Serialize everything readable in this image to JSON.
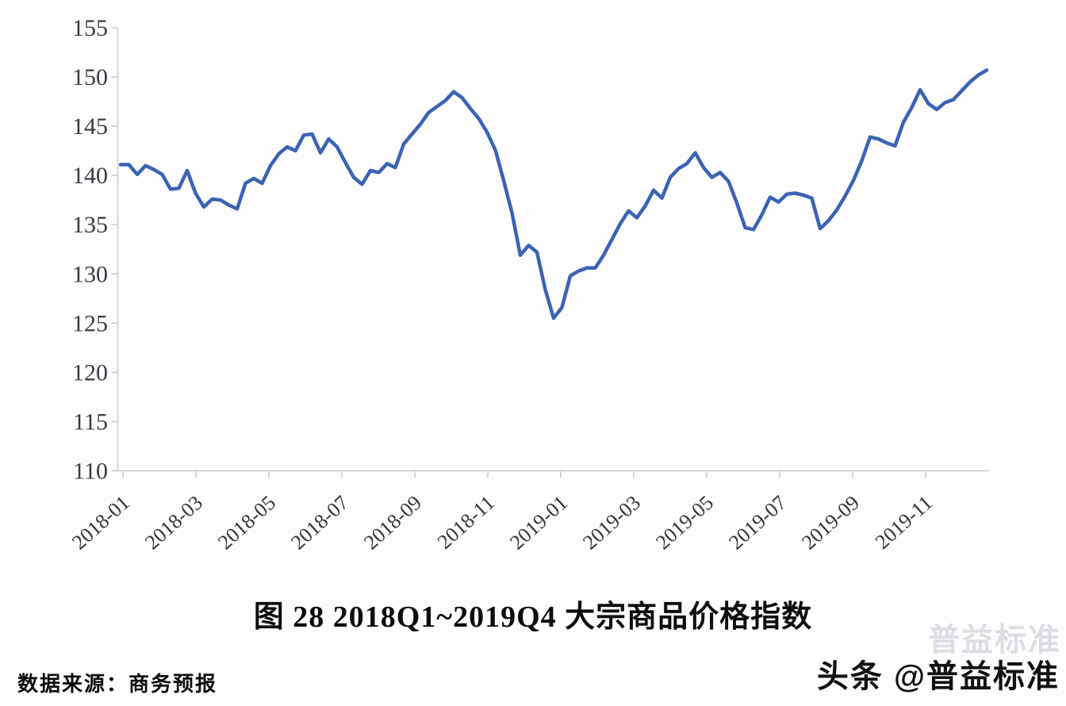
{
  "figure": {
    "title": "图 28  2018Q1~2019Q4 大宗商品价格指数",
    "source_note": "数据来源：商务预报",
    "watermark": "头条 @普益标准",
    "watermark_ghost": "普益标准"
  },
  "chart_data": {
    "type": "line",
    "title": "图 28  2018Q1~2019Q4 大宗商品价格指数",
    "grid": false,
    "legend": null,
    "x_axis": {
      "start": "2018-01",
      "end": "2019-12",
      "frequency": "weekly",
      "tick_labels": [
        "2018-01",
        "2018-03",
        "2018-05",
        "2018-07",
        "2018-09",
        "2018-11",
        "2019-01",
        "2019-03",
        "2019-05",
        "2019-07",
        "2019-09",
        "2019-11"
      ]
    },
    "y_axis": {
      "ticks": [
        110,
        115,
        120,
        125,
        130,
        135,
        140,
        145,
        150,
        155
      ],
      "range": [
        110,
        155
      ]
    },
    "series": [
      {
        "name": "大宗商品价格指数",
        "color": "#3b63b4",
        "values": [
          141.1,
          141.1,
          140.1,
          141.0,
          140.6,
          140.1,
          138.6,
          138.7,
          140.5,
          138.2,
          136.8,
          137.6,
          137.5,
          137.0,
          136.6,
          139.2,
          139.7,
          139.2,
          141.0,
          142.2,
          142.9,
          142.5,
          144.1,
          144.2,
          142.3,
          143.7,
          142.9,
          141.3,
          139.8,
          139.1,
          140.5,
          140.3,
          141.2,
          140.8,
          143.2,
          144.2,
          145.2,
          146.4,
          147.0,
          147.6,
          148.5,
          147.9,
          146.8,
          145.8,
          144.4,
          142.6,
          139.5,
          136.2,
          131.9,
          132.9,
          132.2,
          128.4,
          125.5,
          126.6,
          129.8,
          130.3,
          130.6,
          130.6,
          131.9,
          133.5,
          135.1,
          136.4,
          135.7,
          136.9,
          138.5,
          137.7,
          139.8,
          140.7,
          141.2,
          142.3,
          140.8,
          139.8,
          140.3,
          139.4,
          137.2,
          134.7,
          134.5,
          136.0,
          137.8,
          137.3,
          138.1,
          138.2,
          138.0,
          137.7,
          134.6,
          135.4,
          136.5,
          137.9,
          139.5,
          141.5,
          143.9,
          143.7,
          143.3,
          143.0,
          145.4,
          146.9,
          148.7,
          147.3,
          146.7,
          147.4,
          147.7,
          148.6,
          149.5,
          150.2,
          150.7
        ]
      }
    ]
  },
  "colors": {
    "line": "#3b63b4",
    "axis": "#c3c7cf",
    "tick_text": "#3a3a44",
    "background": "#fdfdfe"
  }
}
